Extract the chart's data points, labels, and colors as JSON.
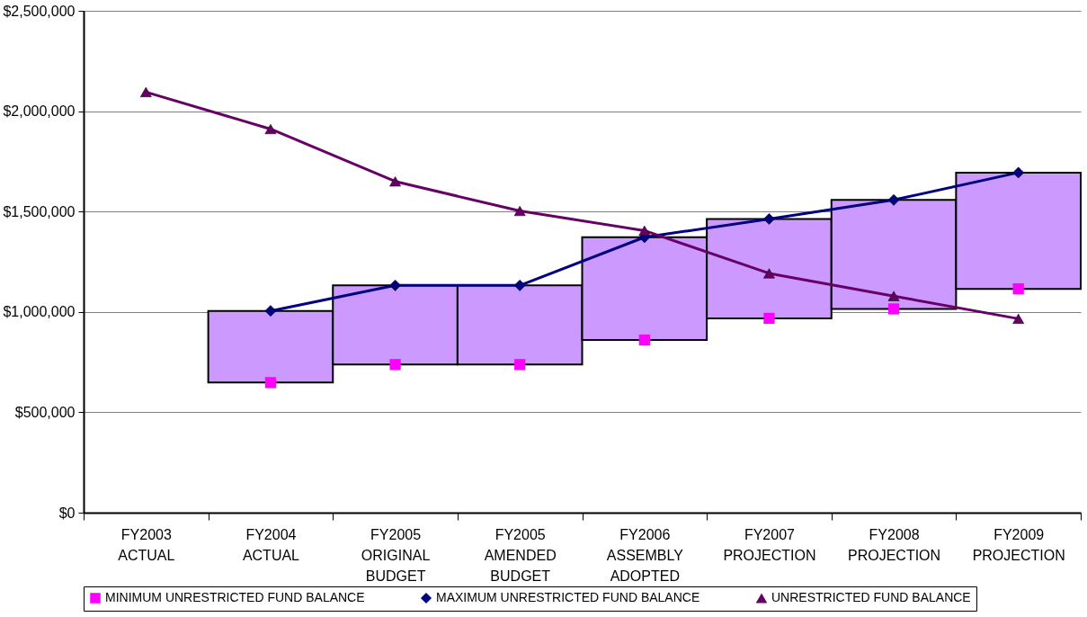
{
  "chart_data": {
    "type": "bar",
    "categories": [
      "FY2003 ACTUAL",
      "FY2004 ACTUAL",
      "FY2005 ORIGINAL BUDGET",
      "FY2005 AMENDED BUDGET",
      "FY2006 ASSEMBLY ADOPTED",
      "FY2007 PROJECTION",
      "FY2008 PROJECTION",
      "FY2009 PROJECTION"
    ],
    "series": [
      {
        "color": "#cc99ff",
        "base": [
          null,
          648000,
          738000,
          738000,
          860000,
          968000,
          1015000,
          1115000
        ],
        "values": [
          null,
          357000,
          394000,
          394000,
          512000,
          495000,
          543000,
          579000
        ]
      },
      {
        "type": "scatter",
        "name": "MINIMUM UNRESTRICTED FUND BALANCE",
        "color": "#ff00ff",
        "marker": "square",
        "values": [
          null,
          648000,
          738000,
          738000,
          860000,
          968000,
          1015000,
          1115000
        ]
      },
      {
        "type": "line",
        "name": "MAXIMUM UNRESTRICTED FUND BALANCE",
        "color": "#000080",
        "marker": "diamond",
        "line_style": "solid",
        "values": [
          null,
          1005000,
          1132000,
          1132000,
          1372000,
          1463000,
          1558000,
          1694000
        ]
      },
      {
        "type": "line",
        "name": "UNRESTRICTED FUND BALANCE",
        "color": "#660066",
        "marker": "triangle",
        "line_style": "solid",
        "values": [
          2095000,
          1911000,
          1650000,
          1503000,
          1405000,
          1192000,
          1079000,
          966000
        ]
      }
    ],
    "ylim": [
      0,
      2500000
    ],
    "yticks": [
      {
        "value": 0,
        "label": "$0"
      },
      {
        "value": 500000,
        "label": "$500,000"
      },
      {
        "value": 1000000,
        "label": "$1,000,000"
      },
      {
        "value": 1500000,
        "label": "$1,500,000"
      },
      {
        "value": 2000000,
        "label": "$2,000,000"
      },
      {
        "value": 2500000,
        "label": "$2,500,000"
      }
    ],
    "grid": "y",
    "legend": "bottom"
  }
}
